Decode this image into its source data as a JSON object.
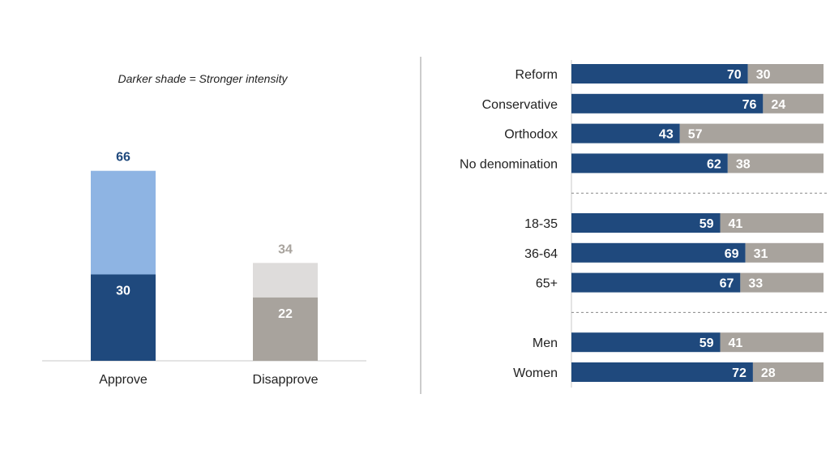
{
  "chart_data": [
    {
      "type": "bar",
      "subtype": "stacked",
      "note": "Darker shade = Stronger intensity",
      "categories": [
        "Approve",
        "Disapprove"
      ],
      "totals": [
        66,
        34
      ],
      "strong": [
        30,
        22
      ],
      "colors": {
        "approve_strong": "#1f497d",
        "approve_light": "#8eb4e3",
        "disapprove_strong": "#a8a39d",
        "disapprove_light": "#dedcdb",
        "approve_total_text": "#1f497d",
        "disapprove_total_text": "#a8a39d"
      },
      "ylim": [
        0,
        100
      ],
      "grid": false
    },
    {
      "type": "bar",
      "orientation": "horizontal",
      "subtype": "stacked-100",
      "groups": [
        {
          "categories": [
            "Reform",
            "Conservative",
            "Orthodox",
            "No denomination"
          ],
          "approve": [
            70,
            76,
            43,
            62
          ],
          "disapprove": [
            30,
            24,
            57,
            38
          ]
        },
        {
          "categories": [
            "18-35",
            "36-64",
            "65+"
          ],
          "approve": [
            59,
            69,
            67
          ],
          "disapprove": [
            41,
            31,
            33
          ]
        },
        {
          "categories": [
            "Men",
            "Women"
          ],
          "approve": [
            59,
            72
          ],
          "disapprove": [
            41,
            28
          ]
        }
      ],
      "colors": {
        "approve": "#1f497d",
        "disapprove": "#a8a39d"
      },
      "xlim": [
        0,
        100
      ],
      "grid": false
    }
  ]
}
